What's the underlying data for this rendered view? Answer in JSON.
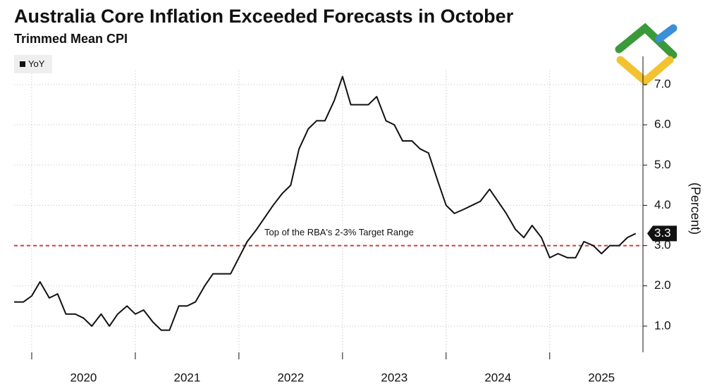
{
  "chart_data": {
    "type": "line",
    "title": "Australia Core Inflation Exceeded Forecasts in October",
    "subtitle": "Trimmed Mean CPI",
    "y_label": "(Percent)",
    "x": [
      2019.83,
      2019.92,
      2020,
      2020.08,
      2020.17,
      2020.25,
      2020.33,
      2020.42,
      2020.5,
      2020.58,
      2020.67,
      2020.75,
      2020.83,
      2020.92,
      2021,
      2021.08,
      2021.17,
      2021.25,
      2021.33,
      2021.42,
      2021.5,
      2021.58,
      2021.67,
      2021.75,
      2021.83,
      2021.92,
      2022,
      2022.08,
      2022.17,
      2022.25,
      2022.33,
      2022.42,
      2022.5,
      2022.58,
      2022.67,
      2022.75,
      2022.83,
      2022.92,
      2023,
      2023.08,
      2023.17,
      2023.25,
      2023.33,
      2023.42,
      2023.5,
      2023.58,
      2023.67,
      2023.75,
      2023.83,
      2023.92,
      2024,
      2024.08,
      2024.17,
      2024.25,
      2024.33,
      2024.42,
      2024.5,
      2024.58,
      2024.67,
      2024.75,
      2024.83,
      2024.92,
      2025,
      2025.08,
      2025.17,
      2025.25,
      2025.33,
      2025.42,
      2025.5,
      2025.58,
      2025.67,
      2025.75,
      2025.83
    ],
    "series": [
      {
        "name": "YoY",
        "color": "#111111",
        "values": [
          1.6,
          1.6,
          1.75,
          2.1,
          1.7,
          1.8,
          1.3,
          1.3,
          1.2,
          1.0,
          1.3,
          1.0,
          1.3,
          1.5,
          1.3,
          1.4,
          1.1,
          0.9,
          0.9,
          1.5,
          1.5,
          1.6,
          2.0,
          2.3,
          2.3,
          2.3,
          2.7,
          3.1,
          3.4,
          3.7,
          4.0,
          4.3,
          4.5,
          5.4,
          5.9,
          6.1,
          6.1,
          6.6,
          7.2,
          6.5,
          6.5,
          6.5,
          6.7,
          6.1,
          6.0,
          5.6,
          5.6,
          5.4,
          5.3,
          4.6,
          4.0,
          3.8,
          3.9,
          4.0,
          4.1,
          4.4,
          4.1,
          3.8,
          3.4,
          3.2,
          3.5,
          3.2,
          2.7,
          2.8,
          2.7,
          2.7,
          3.1,
          3.0,
          2.8,
          3.0,
          3.0,
          3.2,
          3.3
        ]
      }
    ],
    "xlim": [
      2019.83,
      2025.9
    ],
    "xticks": [
      {
        "value": 2020.5,
        "label": "2020"
      },
      {
        "value": 2021.5,
        "label": "2021"
      },
      {
        "value": 2022.5,
        "label": "2022"
      },
      {
        "value": 2023.5,
        "label": "2023"
      },
      {
        "value": 2024.5,
        "label": "2024"
      },
      {
        "value": 2025.5,
        "label": "2025"
      }
    ],
    "xgrid": [
      2020,
      2021,
      2022,
      2023,
      2024,
      2025
    ],
    "ylim": [
      0.35,
      7.35
    ],
    "yticks": [
      {
        "value": 1,
        "label": "1.0"
      },
      {
        "value": 2,
        "label": "2.0"
      },
      {
        "value": 3,
        "label": "3.0"
      },
      {
        "value": 4,
        "label": "4.0"
      },
      {
        "value": 5,
        "label": "5.0"
      },
      {
        "value": 6,
        "label": "6.0"
      },
      {
        "value": 7,
        "label": "7.0"
      }
    ],
    "grid": true,
    "legend": "top-left",
    "target_line": {
      "value": 3,
      "label": "Top of the RBA's 2-3% Target Range",
      "color": "#d23c3c"
    }
  }
}
